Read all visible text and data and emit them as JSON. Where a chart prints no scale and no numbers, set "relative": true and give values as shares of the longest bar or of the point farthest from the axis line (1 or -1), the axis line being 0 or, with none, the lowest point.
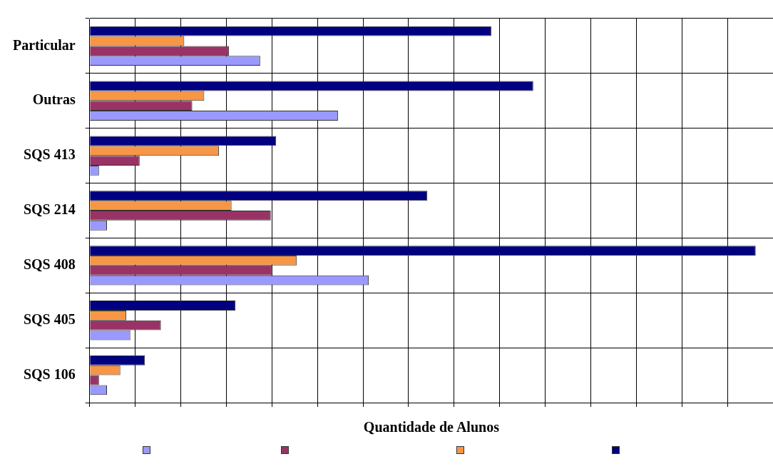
{
  "chart_data": {
    "type": "bar",
    "orientation": "horizontal",
    "relative": true,
    "xlabel": "Quantidade de Alunos",
    "categories": [
      "Particular",
      "Outras",
      "SQS 413",
      "SQS 214",
      "SQS 408",
      "SQS 405",
      "SQS 106"
    ],
    "series": [
      {
        "color": "#9999ff",
        "values": [
          0.256,
          0.373,
          0.014,
          0.026,
          0.419,
          0.061,
          0.026
        ]
      },
      {
        "color": "#993366",
        "values": [
          0.209,
          0.154,
          0.075,
          0.272,
          0.274,
          0.107,
          0.014
        ]
      },
      {
        "color": "#f79646",
        "values": [
          0.142,
          0.172,
          0.194,
          0.213,
          0.311,
          0.055,
          0.046
        ]
      },
      {
        "color": "#000080",
        "values": [
          0.603,
          0.666,
          0.28,
          0.507,
          1,
          0.219,
          0.083
        ]
      }
    ],
    "grid": true
  }
}
